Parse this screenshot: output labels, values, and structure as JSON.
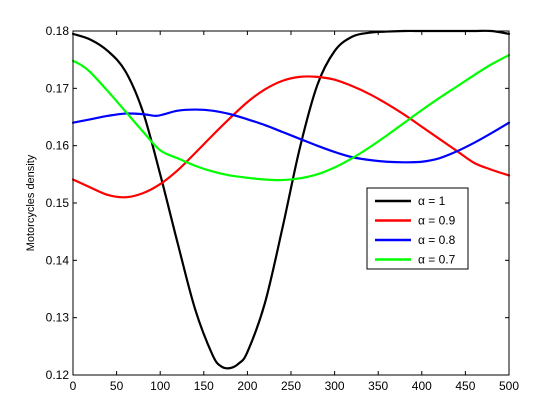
{
  "chart_data": {
    "type": "line",
    "title": "",
    "xlabel": "",
    "ylabel": "Motorcycles density",
    "xlim": [
      0,
      500
    ],
    "ylim": [
      0.12,
      0.18
    ],
    "xticks": [
      0,
      50,
      100,
      150,
      200,
      250,
      300,
      350,
      400,
      450,
      500
    ],
    "yticks": [
      0.12,
      0.13,
      0.14,
      0.15,
      0.16,
      0.17,
      0.18
    ],
    "ytick_labels": [
      "0.12",
      "0.13",
      "0.14",
      "0.15",
      "0.16",
      "0.17",
      "0.18"
    ],
    "grid": false,
    "legend_position": "right",
    "series": [
      {
        "name": "α = 1",
        "color": "#000000",
        "x": [
          0,
          20,
          40,
          60,
          80,
          100,
          120,
          140,
          160,
          170,
          180,
          190,
          200,
          220,
          240,
          260,
          280,
          300,
          320,
          340,
          360,
          380,
          400,
          420,
          440,
          460,
          480,
          500
        ],
        "y": [
          0.1795,
          0.1785,
          0.1765,
          0.173,
          0.166,
          0.155,
          0.143,
          0.1315,
          0.1235,
          0.1215,
          0.1212,
          0.122,
          0.124,
          0.1325,
          0.1455,
          0.1595,
          0.1705,
          0.1765,
          0.179,
          0.1797,
          0.1799,
          0.18,
          0.18,
          0.18,
          0.18,
          0.18,
          0.18,
          0.1795
        ]
      },
      {
        "name": "α = 0.9",
        "color": "#ff0000",
        "x": [
          0,
          20,
          40,
          60,
          80,
          100,
          120,
          140,
          160,
          180,
          200,
          220,
          240,
          260,
          280,
          300,
          320,
          340,
          360,
          380,
          400,
          420,
          440,
          460,
          480,
          500
        ],
        "y": [
          0.1541,
          0.1527,
          0.1514,
          0.151,
          0.1517,
          0.1533,
          0.1557,
          0.1587,
          0.1618,
          0.1648,
          0.1676,
          0.1698,
          0.1713,
          0.172,
          0.172,
          0.1715,
          0.1704,
          0.169,
          0.1673,
          0.1654,
          0.1633,
          0.1612,
          0.1591,
          0.157,
          0.1558,
          0.1548
        ]
      },
      {
        "name": "α = 0.8",
        "color": "#0000ff",
        "x": [
          0,
          20,
          40,
          60,
          80,
          95,
          105,
          120,
          140,
          160,
          180,
          200,
          220,
          240,
          260,
          280,
          300,
          320,
          340,
          360,
          380,
          400,
          420,
          440,
          460,
          480,
          500
        ],
        "y": [
          0.164,
          0.1646,
          0.1652,
          0.1656,
          0.1655,
          0.1652,
          0.1655,
          0.1661,
          0.1663,
          0.1661,
          0.1655,
          0.1646,
          0.1636,
          0.1624,
          0.1612,
          0.16,
          0.1589,
          0.158,
          0.1575,
          0.1572,
          0.1571,
          0.1572,
          0.1578,
          0.159,
          0.1605,
          0.1622,
          0.164
        ]
      },
      {
        "name": "α = 0.7",
        "color": "#00ff00",
        "x": [
          0,
          10,
          20,
          40,
          60,
          80,
          100,
          120,
          140,
          160,
          180,
          200,
          220,
          240,
          260,
          280,
          300,
          320,
          340,
          360,
          380,
          400,
          420,
          440,
          460,
          480,
          500
        ],
        "y": [
          0.1748,
          0.174,
          0.1728,
          0.1695,
          0.166,
          0.1625,
          0.1592,
          0.1578,
          0.1565,
          0.1555,
          0.1548,
          0.1544,
          0.1541,
          0.154,
          0.1543,
          0.155,
          0.1562,
          0.1578,
          0.1597,
          0.1618,
          0.164,
          0.1662,
          0.1683,
          0.1703,
          0.1723,
          0.1742,
          0.1758
        ]
      }
    ]
  }
}
